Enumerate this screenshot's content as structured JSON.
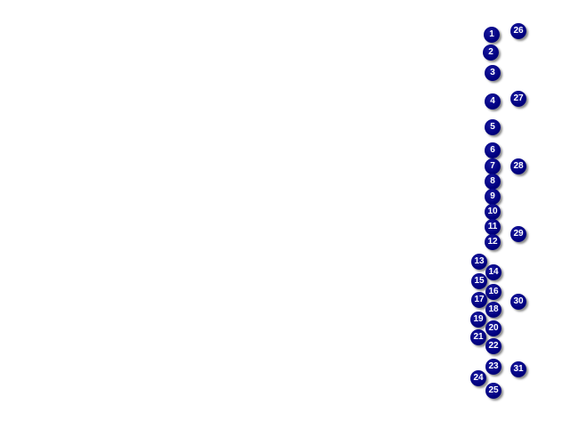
{
  "marker_color": "#000080",
  "marker_text_color": "#ffffff",
  "markers": [
    {
      "label": "1"
    },
    {
      "label": "2"
    },
    {
      "label": "3"
    },
    {
      "label": "4"
    },
    {
      "label": "5"
    },
    {
      "label": "6"
    },
    {
      "label": "7"
    },
    {
      "label": "8"
    },
    {
      "label": "9"
    },
    {
      "label": "10"
    },
    {
      "label": "11"
    },
    {
      "label": "12"
    },
    {
      "label": "13"
    },
    {
      "label": "14"
    },
    {
      "label": "15"
    },
    {
      "label": "16"
    },
    {
      "label": "17"
    },
    {
      "label": "18"
    },
    {
      "label": "19"
    },
    {
      "label": "20"
    },
    {
      "label": "21"
    },
    {
      "label": "22"
    },
    {
      "label": "23"
    },
    {
      "label": "24"
    },
    {
      "label": "25"
    },
    {
      "label": "26"
    },
    {
      "label": "27"
    },
    {
      "label": "28"
    },
    {
      "label": "29"
    },
    {
      "label": "30"
    },
    {
      "label": "31"
    }
  ]
}
